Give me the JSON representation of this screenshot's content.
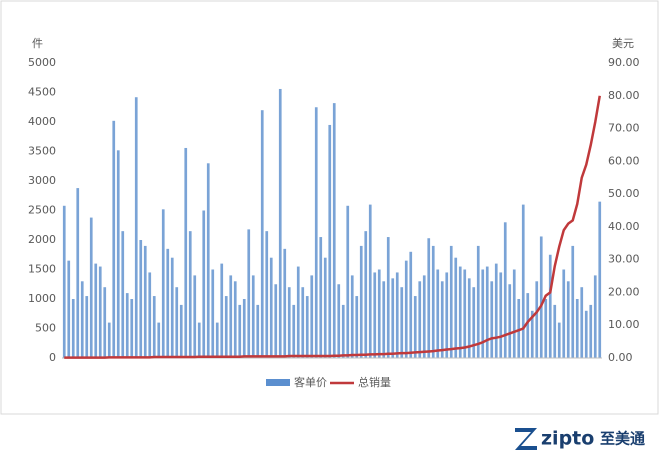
{
  "chart_data": {
    "type": "bar-line",
    "y_label": "件",
    "y2_label": "美元",
    "ylim": [
      0,
      5000
    ],
    "yticks": [
      0,
      500,
      1000,
      1500,
      2000,
      2500,
      3000,
      3500,
      4000,
      4500,
      5000
    ],
    "y2lim": [
      0,
      90
    ],
    "y2ticks": [
      {
        "value": 0,
        "label": "0.00"
      },
      {
        "value": 10,
        "label": "10.00"
      },
      {
        "value": 20,
        "label": "20.00"
      },
      {
        "value": 30,
        "label": "30.00"
      },
      {
        "value": 40,
        "label": "40.00"
      },
      {
        "value": 50,
        "label": "50.00"
      },
      {
        "value": 60,
        "label": "60.00"
      },
      {
        "value": 70,
        "label": "70.00"
      },
      {
        "value": 80,
        "label": "80.00"
      },
      {
        "value": 90,
        "label": "90.00"
      }
    ],
    "series": [
      {
        "name": "客单价",
        "color": "#7aa3d6",
        "legend_color": "#5b8fcf",
        "values": [
          2580,
          1650,
          1000,
          2880,
          1300,
          1050,
          2380,
          1600,
          1550,
          1200,
          600,
          4020,
          3520,
          2150,
          1100,
          1000,
          4420,
          2000,
          1900,
          1450,
          1050,
          600,
          2520,
          1850,
          1700,
          1200,
          900,
          3560,
          2150,
          1400,
          600,
          2500,
          3300,
          1500,
          600,
          1600,
          1050,
          1400,
          1300,
          900,
          1000,
          2180,
          1400,
          900,
          4200,
          2150,
          1700,
          1250,
          4560,
          1850,
          1200,
          900,
          1550,
          1200,
          1050,
          1400,
          4250,
          2050,
          1700,
          3950,
          4320,
          1250,
          900,
          2580,
          1400,
          1050,
          1900,
          2150,
          2600,
          1450,
          1500,
          1300,
          2050,
          1350,
          1450,
          1200,
          1650,
          1800,
          1050,
          1300,
          1400,
          2030,
          1900,
          1500,
          1300,
          1450,
          1900,
          1700,
          1550,
          1500,
          1350,
          1200,
          1900,
          1500,
          1550,
          1300,
          1600,
          1450,
          2300,
          1250,
          1500,
          1000,
          2600,
          1100,
          800,
          1300,
          2060,
          1000,
          1750,
          900,
          600,
          1500,
          1300,
          1900,
          1000,
          1200,
          800,
          900,
          1400,
          2650
        ]
      },
      {
        "name": "总销量",
        "color": "#c0393b",
        "axis": "y2",
        "values": [
          0.1,
          0.1,
          0.1,
          0.1,
          0.1,
          0.1,
          0.1,
          0.1,
          0.1,
          0.1,
          0.2,
          0.2,
          0.2,
          0.2,
          0.2,
          0.2,
          0.2,
          0.2,
          0.2,
          0.2,
          0.3,
          0.3,
          0.3,
          0.3,
          0.3,
          0.3,
          0.3,
          0.3,
          0.3,
          0.3,
          0.4,
          0.4,
          0.4,
          0.4,
          0.4,
          0.4,
          0.4,
          0.4,
          0.4,
          0.4,
          0.5,
          0.5,
          0.5,
          0.5,
          0.5,
          0.5,
          0.5,
          0.5,
          0.5,
          0.5,
          0.6,
          0.6,
          0.6,
          0.6,
          0.6,
          0.6,
          0.6,
          0.6,
          0.6,
          0.6,
          0.7,
          0.7,
          0.8,
          0.8,
          0.9,
          0.9,
          1.0,
          1.0,
          1.1,
          1.1,
          1.2,
          1.2,
          1.3,
          1.3,
          1.4,
          1.5,
          1.5,
          1.6,
          1.7,
          1.8,
          1.9,
          2.0,
          2.1,
          2.3,
          2.4,
          2.6,
          2.7,
          2.9,
          3.0,
          3.2,
          3.5,
          3.9,
          4.3,
          4.8,
          5.5,
          6.0,
          6.2,
          6.5,
          7.0,
          7.5,
          8.0,
          8.5,
          9.0,
          11.0,
          12.5,
          14.0,
          16.0,
          19.0,
          20.0,
          28.0,
          34.0,
          39.0,
          41.0,
          42.0,
          47.0,
          55.0,
          59.0,
          65.0,
          72.0,
          80.0
        ]
      }
    ]
  },
  "logo": {
    "brand": "zipto",
    "cn": "至美通"
  }
}
